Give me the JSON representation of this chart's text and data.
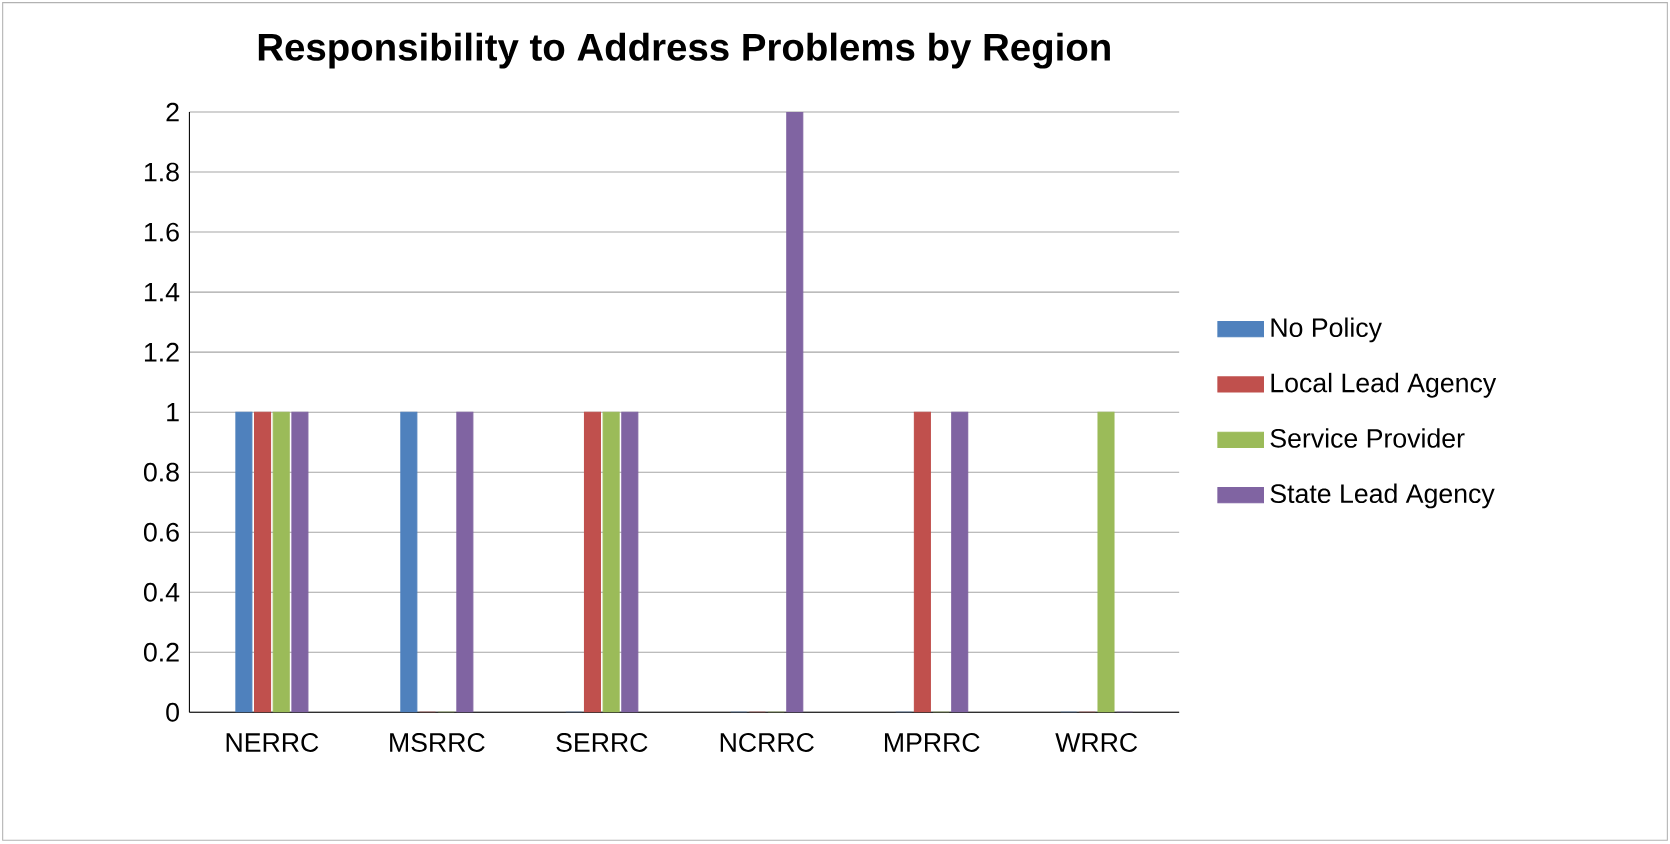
{
  "chart_data": {
    "type": "bar",
    "title": "Responsibility to Address Problems by Region",
    "categories": [
      "NERRC",
      "MSRRC",
      "SERRC",
      "NCRRC",
      "MPRRC",
      "WRRC"
    ],
    "series": [
      {
        "name": "No Policy",
        "color": "#4f81bd",
        "values": [
          1,
          1,
          0,
          0,
          0,
          0
        ]
      },
      {
        "name": "Local Lead Agency",
        "color": "#c0504d",
        "values": [
          1,
          0,
          1,
          0,
          1,
          0
        ]
      },
      {
        "name": "Service Provider",
        "color": "#9bbb59",
        "values": [
          1,
          0,
          1,
          0,
          0,
          1
        ]
      },
      {
        "name": "State Lead Agency",
        "color": "#8064a2",
        "values": [
          1,
          1,
          1,
          2,
          1,
          0
        ]
      }
    ],
    "ylim": [
      0,
      2
    ],
    "yticks": [
      0,
      0.2,
      0.4,
      0.6,
      0.8,
      1,
      1.2,
      1.4,
      1.6,
      1.8,
      2
    ],
    "grid": "y",
    "legend": "right"
  }
}
